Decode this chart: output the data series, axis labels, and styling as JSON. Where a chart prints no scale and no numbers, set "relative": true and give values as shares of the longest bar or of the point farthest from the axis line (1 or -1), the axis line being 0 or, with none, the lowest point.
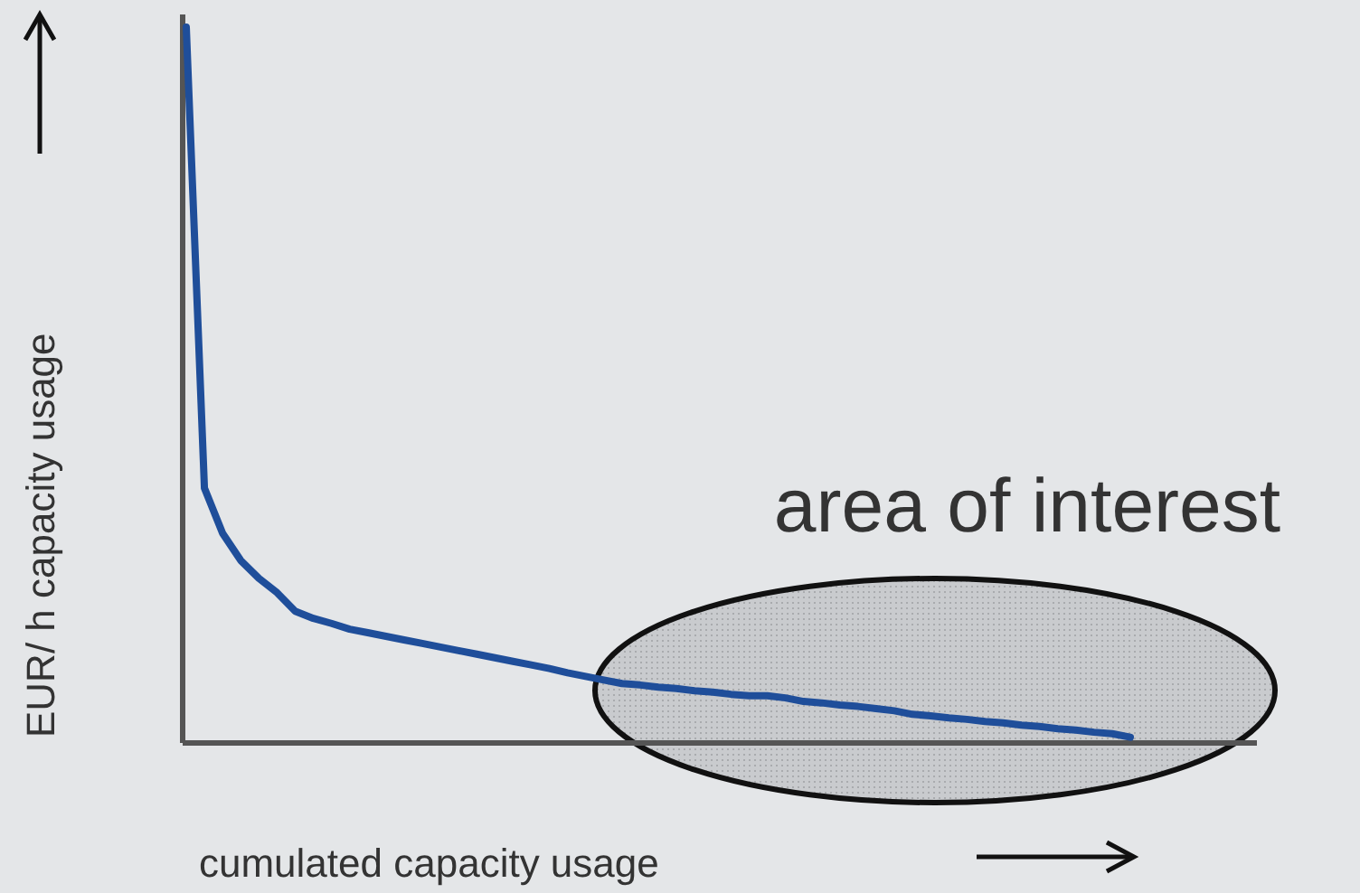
{
  "chart_data": {
    "type": "line",
    "relative": true,
    "xlabel": "cumulated capacity usage",
    "ylabel": "EUR/ h capacity usage",
    "annotations": [
      "area of interest"
    ],
    "categories": [
      null,
      null,
      null,
      null,
      null,
      null,
      null,
      null,
      null,
      null,
      null,
      null,
      null,
      null,
      null,
      null,
      null,
      null,
      null,
      null,
      null,
      null,
      null,
      null,
      null,
      null,
      null,
      null,
      null,
      null,
      null,
      null,
      null,
      null,
      null,
      null,
      null,
      null,
      null,
      null,
      null,
      null,
      null,
      null,
      null,
      null,
      null,
      null,
      null,
      null,
      null,
      null,
      null
    ],
    "series": [
      {
        "color": "#1f4e9a",
        "values": [
          1.0,
          0.356,
          0.293,
          0.255,
          0.23,
          0.21,
          0.184,
          0.174,
          0.167,
          0.159,
          0.154,
          0.149,
          0.144,
          0.139,
          0.134,
          0.129,
          0.124,
          0.119,
          0.114,
          0.109,
          0.104,
          0.098,
          0.093,
          0.088,
          0.083,
          0.081,
          0.078,
          0.076,
          0.073,
          0.071,
          0.068,
          0.066,
          0.066,
          0.063,
          0.058,
          0.056,
          0.053,
          0.051,
          0.048,
          0.045,
          0.04,
          0.038,
          0.035,
          0.033,
          0.03,
          0.028,
          0.025,
          0.023,
          0.02,
          0.018,
          0.015,
          0.013,
          0.008
        ]
      }
    ],
    "line_style": "solid"
  }
}
